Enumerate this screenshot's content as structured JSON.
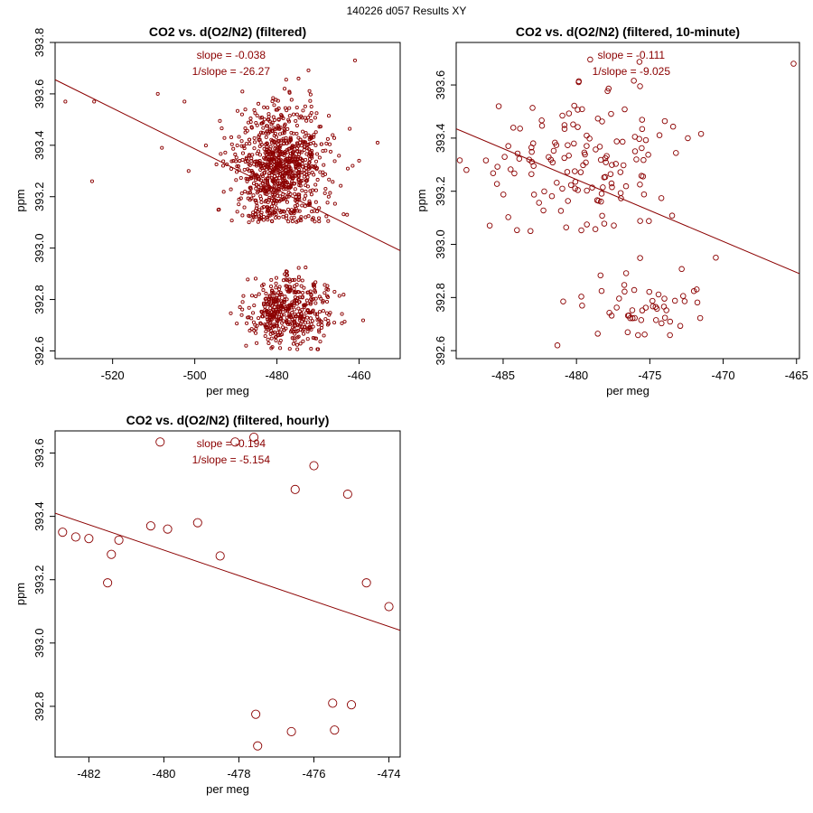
{
  "page_title": "140226   d057   Results XY",
  "colors": {
    "series": "#8b0000",
    "axis": "#000000",
    "background": "#ffffff"
  },
  "chart_data": [
    {
      "type": "scatter",
      "title": "CO2 vs. d(O2/N2) (filtered)",
      "xlabel": "per meg",
      "ylabel": "ppm",
      "xlim": [
        -534,
        -450
      ],
      "ylim": [
        392.57,
        393.8
      ],
      "xticks": [
        -520,
        -500,
        -480,
        -460
      ],
      "yticks": [
        392.6,
        392.8,
        393.0,
        393.2,
        393.4,
        393.6,
        393.8
      ],
      "ytick_labels": [
        "392.6",
        "392.8",
        "393.0",
        "393.2",
        "393.4",
        "393.6",
        "393.8"
      ],
      "annotations": [
        "slope = -0.038",
        "1/slope = -26.27"
      ],
      "marker_size": "small",
      "fit_line": {
        "x": [
          -534,
          -450
        ],
        "y": [
          393.655,
          392.99
        ]
      },
      "sampled_points": true,
      "clusters": [
        {
          "name": "upper",
          "n": 900,
          "x_mean": -479,
          "x_sd": 5.5,
          "y_min": 393.1,
          "y_max": 393.75,
          "y_center": 393.32,
          "y_sd": 0.12
        },
        {
          "name": "lower",
          "n": 450,
          "x_mean": -477,
          "x_sd": 5,
          "y_min": 392.6,
          "y_max": 393.0,
          "y_center": 392.75,
          "y_sd": 0.07
        }
      ],
      "outliers": [
        {
          "x": -531.5,
          "y": 393.57
        },
        {
          "x": -524.5,
          "y": 393.57
        },
        {
          "x": -525,
          "y": 393.26
        },
        {
          "x": -509,
          "y": 393.6
        },
        {
          "x": -508,
          "y": 393.39
        },
        {
          "x": -502.5,
          "y": 393.57
        },
        {
          "x": -501.5,
          "y": 393.3
        },
        {
          "x": -455.5,
          "y": 393.41
        },
        {
          "x": -461,
          "y": 393.73
        },
        {
          "x": -460,
          "y": 393.34
        },
        {
          "x": -489,
          "y": 392.77
        }
      ]
    },
    {
      "type": "scatter",
      "title": "CO2 vs. d(O2/N2) (filtered, 10-minute)",
      "xlabel": "per meg",
      "ylabel": "ppm",
      "xlim": [
        -488.2,
        -464.8
      ],
      "ylim": [
        392.57,
        393.76
      ],
      "xticks": [
        -485,
        -480,
        -475,
        -470,
        -465
      ],
      "yticks": [
        392.6,
        392.8,
        393.0,
        393.2,
        393.4,
        393.6
      ],
      "ytick_labels": [
        "392.6",
        "392.8",
        "393.0",
        "393.2",
        "393.4",
        "393.6"
      ],
      "annotations": [
        "slope = -0.111",
        "1/slope = -9.025"
      ],
      "marker_size": "medium",
      "fit_line": {
        "x": [
          -488.2,
          -464.8
        ],
        "y": [
          393.435,
          392.89
        ]
      },
      "sampled_points": true,
      "clusters": [
        {
          "name": "upper",
          "n": 140,
          "x_mean": -479,
          "x_sd": 3.2,
          "y_min": 393.05,
          "y_max": 393.72,
          "y_center": 393.33,
          "y_sd": 0.15
        },
        {
          "name": "lower",
          "n": 50,
          "x_mean": -476,
          "x_sd": 2.2,
          "y_min": 392.62,
          "y_max": 392.95,
          "y_center": 392.76,
          "y_sd": 0.07
        }
      ],
      "outliers": [
        {
          "x": -487.5,
          "y": 393.28
        },
        {
          "x": -465.2,
          "y": 393.68
        },
        {
          "x": -470.5,
          "y": 392.95
        },
        {
          "x": -485.3,
          "y": 393.52
        },
        {
          "x": -481.3,
          "y": 392.62
        }
      ]
    },
    {
      "type": "scatter",
      "title": "CO2 vs. d(O2/N2) (filtered, hourly)",
      "xlabel": "per meg",
      "ylabel": "ppm",
      "xlim": [
        -482.9,
        -473.7
      ],
      "ylim": [
        392.64,
        393.67
      ],
      "xticks": [
        -482,
        -480,
        -478,
        -476,
        -474
      ],
      "yticks": [
        392.8,
        393.0,
        393.2,
        393.4,
        393.6
      ],
      "ytick_labels": [
        "392.8",
        "393.0",
        "393.2",
        "393.4",
        "393.6"
      ],
      "annotations": [
        "slope = -0.194",
        "1/slope = -5.154"
      ],
      "marker_size": "large",
      "fit_line": {
        "x": [
          -482.9,
          -473.7
        ],
        "y": [
          393.41,
          393.04
        ]
      },
      "sampled_points": false,
      "points": [
        {
          "x": -482.7,
          "y": 393.35
        },
        {
          "x": -482.35,
          "y": 393.335
        },
        {
          "x": -482.0,
          "y": 393.33
        },
        {
          "x": -481.5,
          "y": 393.19
        },
        {
          "x": -481.4,
          "y": 393.28
        },
        {
          "x": -481.2,
          "y": 393.325
        },
        {
          "x": -480.35,
          "y": 393.37
        },
        {
          "x": -480.1,
          "y": 393.635
        },
        {
          "x": -479.9,
          "y": 393.36
        },
        {
          "x": -479.1,
          "y": 393.38
        },
        {
          "x": -478.5,
          "y": 393.275
        },
        {
          "x": -478.1,
          "y": 393.635
        },
        {
          "x": -477.6,
          "y": 393.65
        },
        {
          "x": -477.55,
          "y": 392.775
        },
        {
          "x": -477.5,
          "y": 392.675
        },
        {
          "x": -476.6,
          "y": 392.72
        },
        {
          "x": -476.5,
          "y": 393.485
        },
        {
          "x": -476.0,
          "y": 393.56
        },
        {
          "x": -475.5,
          "y": 392.81
        },
        {
          "x": -475.45,
          "y": 392.725
        },
        {
          "x": -475.1,
          "y": 393.47
        },
        {
          "x": -475.0,
          "y": 392.805
        },
        {
          "x": -474.6,
          "y": 393.19
        },
        {
          "x": -474.0,
          "y": 393.115
        }
      ]
    }
  ]
}
